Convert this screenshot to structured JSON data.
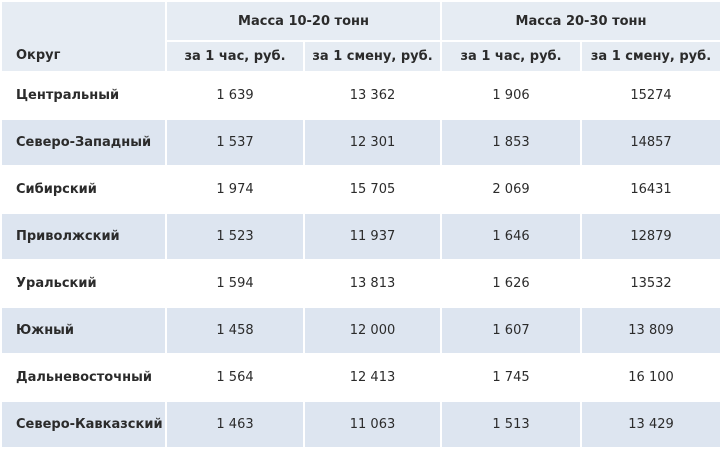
{
  "table": {
    "corner": "Округ",
    "groups": [
      "Масса 10-20 тонн",
      "Масса 20-30 тонн"
    ],
    "subheaders": [
      "за 1 час, руб.",
      "за 1 смену, руб.",
      "за 1 час, руб.",
      "за 1 смену, руб."
    ],
    "rows": [
      [
        "Центральный",
        "1 639",
        "13 362",
        "1 906",
        "15274"
      ],
      [
        "Северо-Западный",
        "1 537",
        "12 301",
        "1 853",
        "14857"
      ],
      [
        "Сибирский",
        "1 974",
        "15 705",
        "2 069",
        "16431"
      ],
      [
        "Приволжский",
        "1 523",
        "11 937",
        "1 646",
        "12879"
      ],
      [
        "Уральский",
        "1 594",
        "13 813",
        "1 626",
        "13532"
      ],
      [
        "Южный",
        "1 458",
        "12 000",
        "1 607",
        "13 809"
      ],
      [
        "Дальневосточный",
        "1 564",
        "12 413",
        "1 745",
        "16 100"
      ],
      [
        "Северо-Кавказский",
        "1 463",
        "11 063",
        "1 513",
        "13 429"
      ]
    ]
  }
}
